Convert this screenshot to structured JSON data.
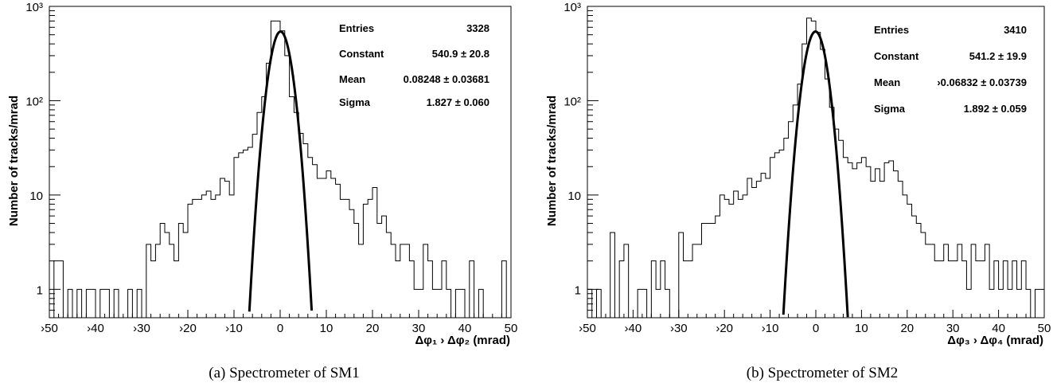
{
  "chart_data": [
    {
      "type": "histogram",
      "caption": "(a) Spectrometer of SM1",
      "xlabel": "Δφ₁ › Δφ₂ (mrad)",
      "ylabel": "Number of tracks/mrad",
      "xlim": [
        -50,
        50
      ],
      "ylim": [
        0.5,
        1000
      ],
      "yscale": "log",
      "x_ticks": [
        -50,
        -40,
        -30,
        -20,
        -10,
        0,
        10,
        20,
        30,
        40,
        50
      ],
      "x_tick_labels": [
        "›50",
        "›40",
        "›30",
        "›20",
        "›10",
        "0",
        "10",
        "20",
        "30",
        "40",
        "50"
      ],
      "y_tick_labels": [
        "1",
        "10",
        "10²",
        "10³"
      ],
      "stats": [
        {
          "label": "Entries",
          "value": "3328"
        },
        {
          "label": "Constant",
          "value": "540.9 ± 20.8"
        },
        {
          "label": "Mean",
          "value": "0.08248 ± 0.03681"
        },
        {
          "label": "Sigma",
          "value": "1.827 ± 0.060"
        }
      ],
      "fit": {
        "function": "gaus",
        "constant": 540.9,
        "mean": 0.08248,
        "sigma": 1.827
      },
      "bin_width": 1,
      "bin_low_edges": [
        -50,
        -49,
        -48,
        -47,
        -46,
        -45,
        -44,
        -43,
        -42,
        -41,
        -40,
        -39,
        -38,
        -37,
        -36,
        -35,
        -34,
        -33,
        -32,
        -31,
        -30,
        -29,
        -28,
        -27,
        -26,
        -25,
        -24,
        -23,
        -22,
        -21,
        -20,
        -19,
        -18,
        -17,
        -16,
        -15,
        -14,
        -13,
        -12,
        -11,
        -10,
        -9,
        -8,
        -7,
        -6,
        -5,
        -4,
        -3,
        -2,
        -1,
        0,
        1,
        2,
        3,
        4,
        5,
        6,
        7,
        8,
        9,
        10,
        11,
        12,
        13,
        14,
        15,
        16,
        17,
        18,
        19,
        20,
        21,
        22,
        23,
        24,
        25,
        26,
        27,
        28,
        29,
        30,
        31,
        32,
        33,
        34,
        35,
        36,
        37,
        38,
        39,
        40,
        41,
        42,
        43,
        44,
        45,
        46,
        47,
        48,
        49
      ],
      "counts": [
        0,
        2,
        2,
        0,
        1,
        0,
        1,
        0,
        1,
        1,
        0,
        1,
        1,
        0,
        1,
        0,
        0,
        1,
        0,
        1,
        0,
        3,
        2,
        3,
        5,
        4,
        3,
        2,
        5,
        4,
        8,
        9,
        9,
        10,
        11,
        9,
        10,
        15,
        14,
        10,
        25,
        28,
        30,
        32,
        44,
        75,
        110,
        250,
        700,
        700,
        550,
        300,
        110,
        75,
        45,
        35,
        25,
        21,
        15,
        15,
        18,
        15,
        13,
        9,
        9,
        7,
        5,
        3,
        8,
        9,
        12,
        5,
        6,
        4,
        3,
        2,
        3,
        3,
        2,
        1,
        1,
        3,
        2,
        1,
        1,
        2,
        1,
        0,
        1,
        1,
        0,
        2,
        0,
        1,
        0,
        0,
        0,
        0,
        2,
        0
      ]
    },
    {
      "type": "histogram",
      "caption": "(b) Spectrometer of SM2",
      "xlabel": "Δφ₃ › Δφ₄ (mrad)",
      "ylabel": "Number of tracks/mrad",
      "xlim": [
        -50,
        50
      ],
      "ylim": [
        0.5,
        1000
      ],
      "yscale": "log",
      "x_ticks": [
        -50,
        -40,
        -30,
        -20,
        -10,
        0,
        10,
        20,
        30,
        40,
        50
      ],
      "x_tick_labels": [
        "›50",
        "›40",
        "›30",
        "›20",
        "›10",
        "0",
        "10",
        "20",
        "30",
        "40",
        "50"
      ],
      "y_tick_labels": [
        "1",
        "10",
        "10²",
        "10³"
      ],
      "stats": [
        {
          "label": "Entries",
          "value": "3410"
        },
        {
          "label": "Constant",
          "value": "541.2 ± 19.9"
        },
        {
          "label": "Mean",
          "value": "›0.06832 ± 0.03739"
        },
        {
          "label": "Sigma",
          "value": "1.892 ± 0.059"
        }
      ],
      "fit": {
        "function": "gaus",
        "constant": 541.2,
        "mean": -0.06832,
        "sigma": 1.892
      },
      "bin_width": 1,
      "bin_low_edges": [
        -50,
        -49,
        -48,
        -47,
        -46,
        -45,
        -44,
        -43,
        -42,
        -41,
        -40,
        -39,
        -38,
        -37,
        -36,
        -35,
        -34,
        -33,
        -32,
        -31,
        -30,
        -29,
        -28,
        -27,
        -26,
        -25,
        -24,
        -23,
        -22,
        -21,
        -20,
        -19,
        -18,
        -17,
        -16,
        -15,
        -14,
        -13,
        -12,
        -11,
        -10,
        -9,
        -8,
        -7,
        -6,
        -5,
        -4,
        -3,
        -2,
        -1,
        0,
        1,
        2,
        3,
        4,
        5,
        6,
        7,
        8,
        9,
        10,
        11,
        12,
        13,
        14,
        15,
        16,
        17,
        18,
        19,
        20,
        21,
        22,
        23,
        24,
        25,
        26,
        27,
        28,
        29,
        30,
        31,
        32,
        33,
        34,
        35,
        36,
        37,
        38,
        39,
        40,
        41,
        42,
        43,
        44,
        45,
        46,
        47,
        48,
        49
      ],
      "counts": [
        1,
        0,
        1,
        0,
        0,
        4,
        0,
        2,
        3,
        0,
        0,
        1,
        1,
        0,
        2,
        1,
        2,
        1,
        0,
        0,
        4,
        2,
        2,
        3,
        3,
        5,
        5,
        5,
        6,
        10,
        9,
        8,
        11,
        9,
        10,
        15,
        12,
        14,
        17,
        15,
        25,
        28,
        30,
        40,
        60,
        90,
        150,
        400,
        750,
        700,
        530,
        350,
        170,
        85,
        50,
        38,
        25,
        22,
        19,
        22,
        25,
        20,
        14,
        19,
        14,
        22,
        23,
        18,
        14,
        10,
        8,
        6,
        5,
        4,
        3,
        3,
        2,
        2,
        3,
        2,
        2,
        3,
        2,
        1,
        3,
        2,
        2,
        3,
        1,
        2,
        1,
        2,
        1,
        2,
        1,
        2,
        1,
        0,
        1,
        1
      ]
    }
  ]
}
